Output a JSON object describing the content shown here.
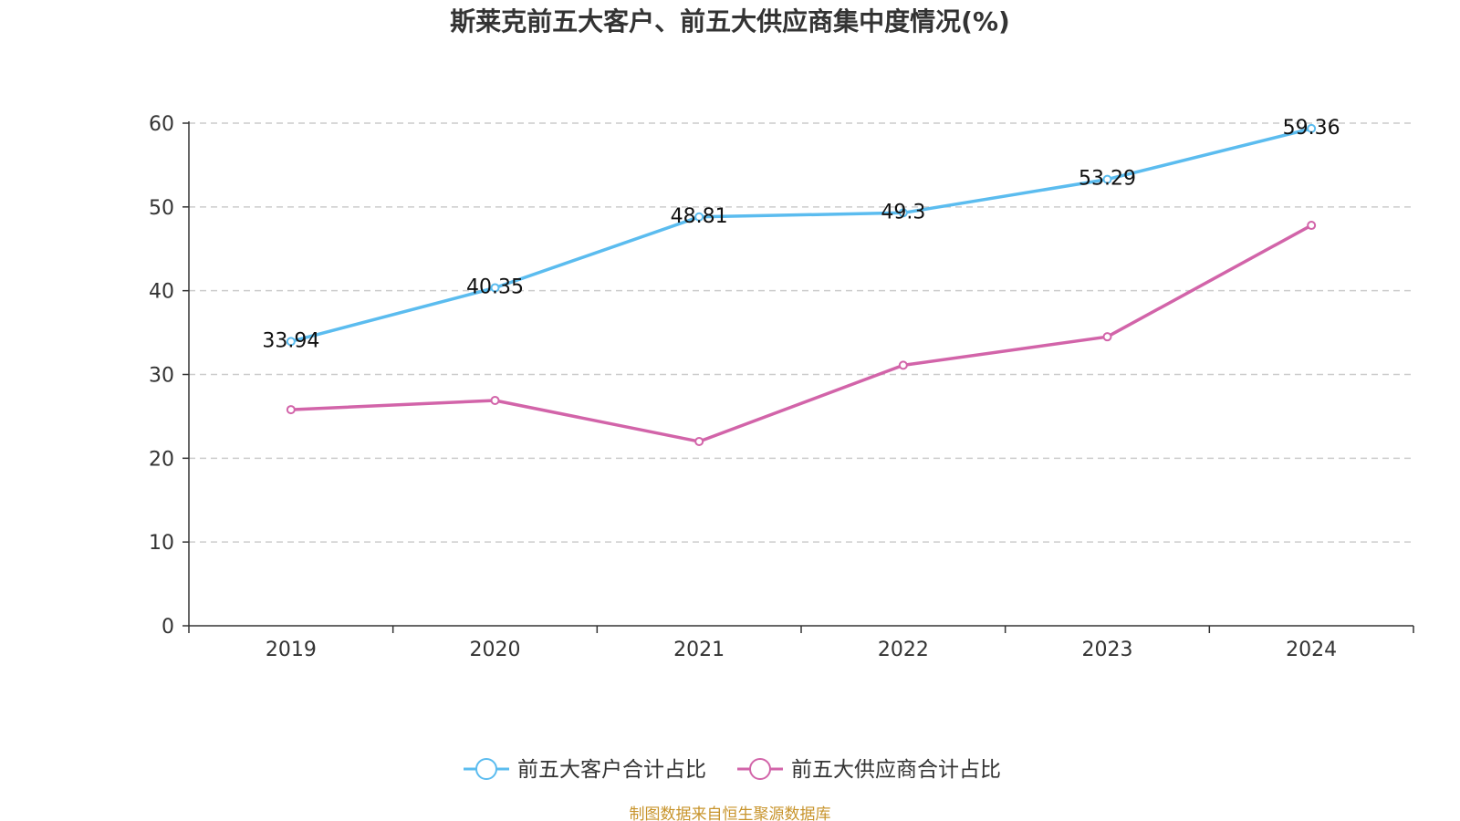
{
  "chart_data": {
    "type": "line",
    "title": "斯莱克前五大客户、前五大供应商集中度情况(%)",
    "categories": [
      "2019",
      "2020",
      "2021",
      "2022",
      "2023",
      "2024"
    ],
    "ylim": [
      0,
      60
    ],
    "yticks": [
      0,
      10,
      20,
      30,
      40,
      50,
      60
    ],
    "grid": true,
    "legend_position": "bottom",
    "series": [
      {
        "name": "前五大客户合计占比",
        "color": "#5bbcef",
        "values": [
          33.94,
          40.35,
          48.81,
          49.3,
          53.29,
          59.36
        ],
        "labels_shown": true
      },
      {
        "name": "前五大供应商合计占比",
        "color": "#d264a9",
        "values": [
          25.8,
          26.9,
          22.0,
          31.1,
          34.5,
          47.8
        ],
        "labels_shown": false
      }
    ]
  },
  "source_text": "制图数据来自恒生聚源数据库"
}
